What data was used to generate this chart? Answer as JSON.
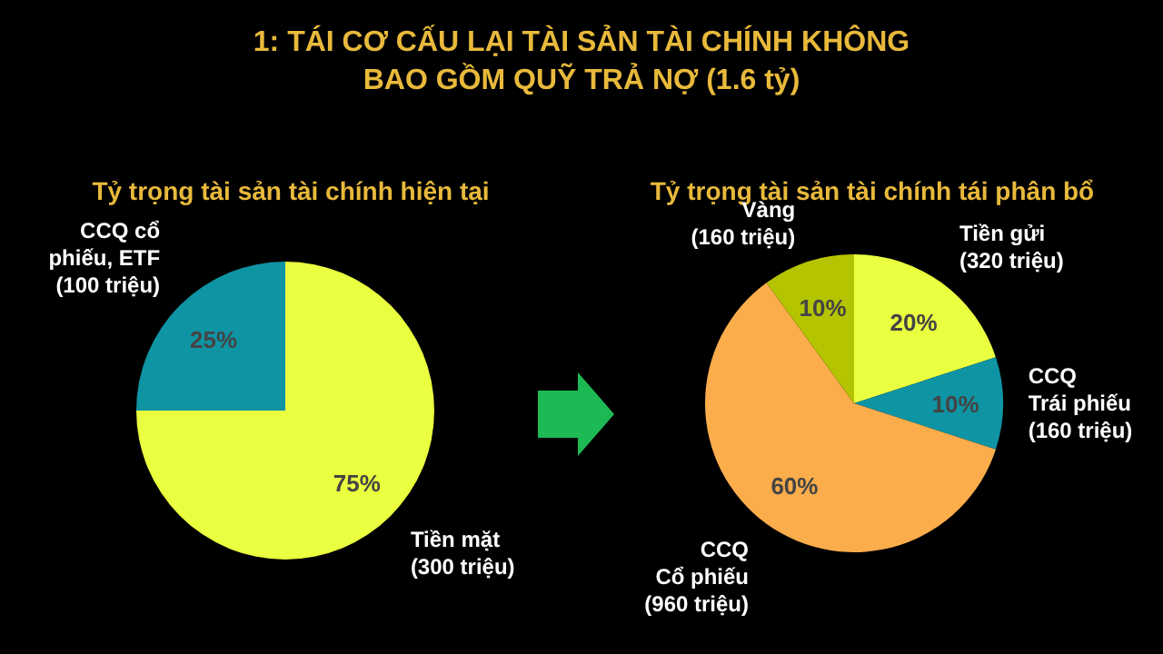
{
  "chart_data": [
    {
      "type": "pie",
      "title": "1: TÁI CƠ CẤU LẠI TÀI SẢN TÀI CHÍNH KHÔNG\nBAO GỒM QUỸ TRẢ NỢ (1.6 tỷ)",
      "subtitle": "Tỷ trọng tài sản tài chính hiện tại",
      "categories": [
        "Tiền mặt\n(300 triệu)",
        "CCQ cổ\nphiếu, ETF\n(100 triệu)"
      ],
      "values": [
        75,
        25
      ],
      "colors": [
        "#eaff3f",
        "#0f94a4"
      ],
      "value_labels": [
        "75%",
        "25%"
      ]
    },
    {
      "type": "pie",
      "subtitle": "Tỷ trọng tài sản tài chính tái phân bổ",
      "categories": [
        "Tiền gửi\n(320 triệu)",
        "CCQ\nTrái phiếu\n(160 triệu)",
        "CCQ\nCổ phiếu\n(960 triệu)",
        "Vàng\n(160 triệu)"
      ],
      "values": [
        20,
        10,
        60,
        10
      ],
      "colors": [
        "#eaff3f",
        "#0f94a4",
        "#fbad4c",
        "#b5c400"
      ],
      "value_labels": [
        "20%",
        "10%",
        "60%",
        "10%"
      ]
    }
  ]
}
